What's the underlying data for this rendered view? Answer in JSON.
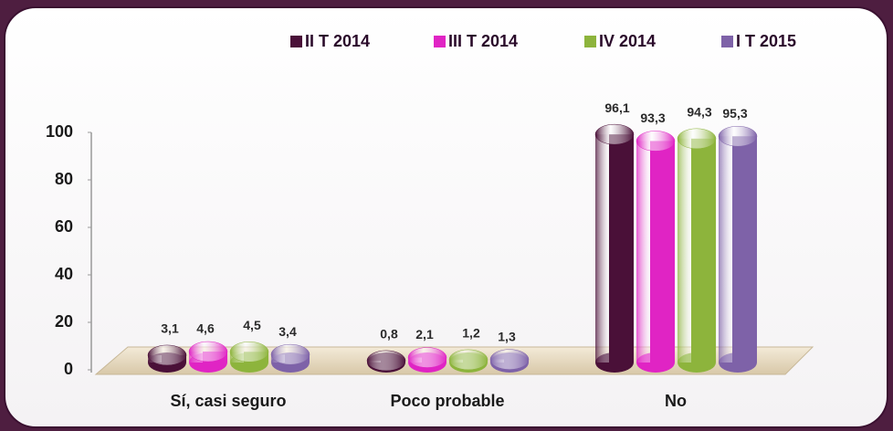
{
  "chart_data": {
    "type": "bar",
    "categories": [
      "Sí, casi seguro",
      "Poco probable",
      "No"
    ],
    "series": [
      {
        "name": "II T 2014",
        "color": "#4a1038",
        "values": [
          3.1,
          0.8,
          96.1
        ],
        "value_labels": [
          "3,1",
          "0,8",
          "96,1"
        ]
      },
      {
        "name": "III T 2014",
        "color": "#e024c4",
        "values": [
          4.6,
          2.1,
          93.3
        ],
        "value_labels": [
          "4,6",
          "2,1",
          "93,3"
        ]
      },
      {
        "name": "IV 2014",
        "color": "#8db43c",
        "values": [
          4.5,
          1.2,
          94.3
        ],
        "value_labels": [
          "4,5",
          "1,2",
          "94,3"
        ]
      },
      {
        "name": "I T 2015",
        "color": "#7e62a8",
        "values": [
          3.4,
          1.3,
          95.3
        ],
        "value_labels": [
          "3,4",
          "1,3",
          "95,3"
        ]
      }
    ],
    "ylim": [
      0,
      100
    ],
    "yticks": [
      0,
      20,
      40,
      60,
      80,
      100
    ]
  }
}
